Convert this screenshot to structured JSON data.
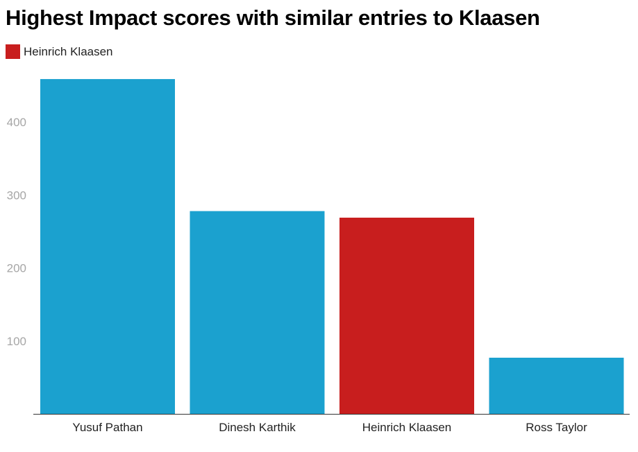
{
  "chart_data": {
    "type": "bar",
    "title": "Highest Impact scores with similar entries to Klaasen",
    "categories": [
      "Yusuf Pathan",
      "Dinesh Karthik",
      "Heinrich Klaasen",
      "Ross Taylor"
    ],
    "values": [
      459,
      278,
      269,
      77
    ],
    "highlight": "Heinrich Klaasen",
    "legend": [
      {
        "label": "Heinrich Klaasen",
        "color": "#c81e1e"
      }
    ],
    "yticks": [
      100,
      200,
      300,
      400
    ],
    "ylim": [
      0,
      470
    ],
    "xlabel": "",
    "ylabel": "",
    "grid": false,
    "legend_position": "top-left",
    "colors": {
      "default_bar": "#1ba1cf",
      "highlight_bar": "#c81e1e",
      "axis": "#333333",
      "ytick_text": "#a6a6a6"
    }
  }
}
